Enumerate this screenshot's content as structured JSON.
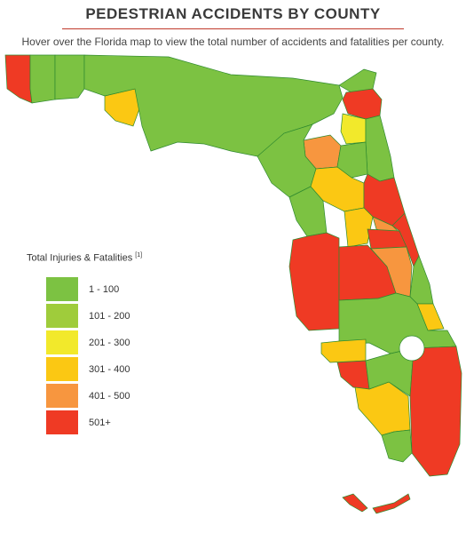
{
  "header": {
    "title": "PEDESTRIAN ACCIDENTS BY COUNTY",
    "subtitle": "Hover over the Florida map to view the total number of accidents and fatalities per county."
  },
  "legend": {
    "title": "Total Injuries & Fatalities",
    "footnote": "[1]",
    "items": [
      {
        "label": "1 - 100",
        "color": "#7cc242"
      },
      {
        "label": "101 - 200",
        "color": "#9fcc3b"
      },
      {
        "label": "201 - 300",
        "color": "#f2e92b"
      },
      {
        "label": "301 - 400",
        "color": "#fbc813"
      },
      {
        "label": "401 - 500",
        "color": "#f7963f"
      },
      {
        "label": "501+",
        "color": "#ef3a24"
      }
    ]
  },
  "map": {
    "region": "Florida",
    "county_colors": {
      "panhandle_west": "#ef3a24",
      "panhandle_second": "#7cc242",
      "panhandle_main": "#7cc242",
      "okaloosa": "#fbc813",
      "duval": "#ef3a24",
      "clay": "#f2e92b",
      "alachua": "#f7963f",
      "north_central": "#7cc242",
      "east_coast": "#7cc242",
      "marion": "#fbc813",
      "volusia": "#ef3a24",
      "seminole": "#f7963f",
      "orange": "#ef3a24",
      "brevard": "#ef3a24",
      "lake": "#fbc813",
      "tampa_bay": "#ef3a24",
      "polk": "#ef3a24",
      "osceola": "#f7963f",
      "indian_river": "#7cc242",
      "st_lucie": "#fbc813",
      "interior": "#7cc242",
      "sarasota": "#fbc813",
      "lee": "#ef3a24",
      "collier": "#fbc813",
      "palm_beach_broward_miami": "#ef3a24",
      "hendry": "#7cc242",
      "monroe_keys": "#ef3a24"
    }
  }
}
